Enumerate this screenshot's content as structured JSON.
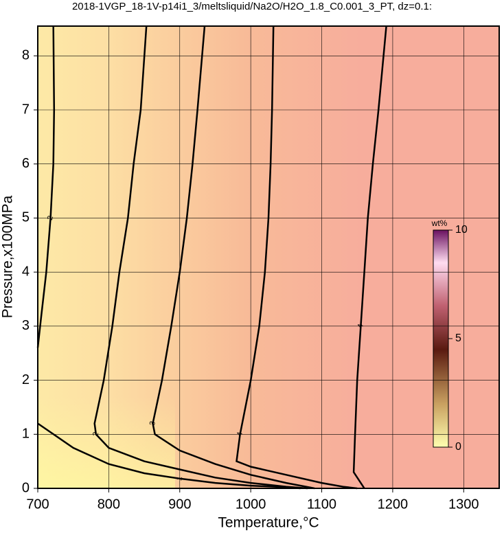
{
  "chart_data": {
    "type": "contour",
    "title": "2018-1VGP_18-1V-p14i1_3/meltsliquid/Na2O/H2O_1.8_C0.001_3_PT, dz=0.1:",
    "x_label": "Temperature,°C",
    "y_label": "Pressure,x100MPa",
    "xlim": [
      700,
      1350
    ],
    "ylim": [
      0,
      8.55
    ],
    "xticks": [
      700,
      800,
      900,
      1000,
      1100,
      1200,
      1300
    ],
    "yticks": [
      0,
      1,
      2,
      3,
      4,
      5,
      6,
      7,
      8
    ],
    "grid": true,
    "colorbar": {
      "label": "wt%",
      "lim": [
        0,
        10
      ],
      "ticks": [
        0,
        5,
        10
      ]
    },
    "contours": [
      {
        "level": 1,
        "x": [
          700,
          750,
          800,
          850,
          900,
          950,
          1000,
          1050,
          1070
        ],
        "y": [
          1.2,
          0.75,
          0.45,
          0.28,
          0.18,
          0.1,
          0.05,
          0.02,
          0
        ]
      },
      {
        "level": 2,
        "x": [
          722,
          723,
          722,
          718,
          712,
          705,
          700
        ],
        "y": [
          8.55,
          7,
          6,
          5,
          4,
          3.2,
          2.6
        ]
      },
      {
        "level": 2,
        "x": [
          853,
          845,
          835,
          827,
          815,
          805,
          793,
          780,
          782,
          800,
          850,
          900,
          950,
          1000,
          1050,
          1080
        ],
        "y": [
          8.55,
          7,
          6,
          5,
          4,
          3,
          2,
          1.2,
          1,
          0.75,
          0.5,
          0.35,
          0.2,
          0.1,
          0.03,
          0
        ]
      },
      {
        "level": 3,
        "x": [
          935,
          925,
          918,
          910,
          900,
          888,
          875,
          862,
          865,
          900,
          950,
          1000,
          1050,
          1090
        ],
        "y": [
          8.55,
          7,
          6,
          5,
          4,
          3,
          2,
          1.2,
          1,
          0.7,
          0.45,
          0.25,
          0.1,
          0
        ]
      },
      {
        "level": 4,
        "x": [
          1032,
          1030,
          1028,
          1025,
          1020,
          1012,
          1000,
          985,
          980,
          1000,
          1050,
          1100,
          1130,
          1150
        ],
        "y": [
          8.55,
          7,
          6,
          5,
          4,
          3,
          2,
          1,
          0.5,
          0.4,
          0.25,
          0.1,
          0.03,
          0
        ]
      },
      {
        "level": 4,
        "x": [
          1191,
          1180,
          1172,
          1165,
          1160,
          1155,
          1150,
          1147,
          1145,
          1160
        ],
        "y": [
          8.55,
          7,
          6,
          5,
          4,
          3,
          2,
          1,
          0.3,
          0
        ]
      }
    ]
  }
}
